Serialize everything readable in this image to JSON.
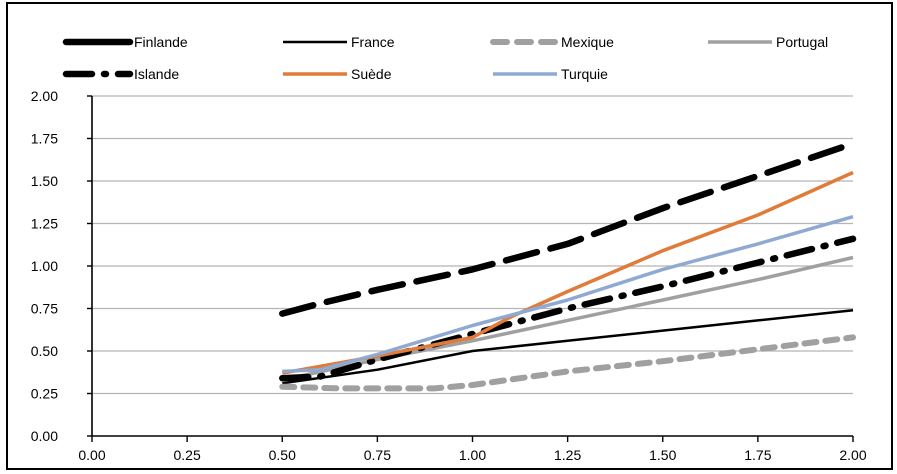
{
  "chart_data": {
    "type": "line",
    "title": "",
    "xlabel": "",
    "ylabel": "",
    "xlim": [
      0,
      2
    ],
    "ylim": [
      0,
      2
    ],
    "x_ticks": [
      "0.00",
      "0.25",
      "0.50",
      "0.75",
      "1.00",
      "1.25",
      "1.50",
      "1.75",
      "2.00"
    ],
    "y_ticks": [
      "0.00",
      "0.25",
      "0.50",
      "0.75",
      "1.00",
      "1.25",
      "1.50",
      "1.75",
      "2.00"
    ],
    "grid": "horizontal",
    "legend_position": "top",
    "series": [
      {
        "name": "Finlande",
        "color": "#000000",
        "style": "long-dash-thick",
        "x": [
          0.5,
          0.6,
          0.75,
          1.0,
          1.25,
          1.5,
          1.75,
          2.0
        ],
        "y": [
          0.72,
          0.78,
          0.86,
          0.98,
          1.13,
          1.34,
          1.53,
          1.72
        ]
      },
      {
        "name": "France",
        "color": "#000000",
        "style": "solid-thin",
        "x": [
          0.5,
          0.75,
          1.0,
          1.25,
          1.5,
          1.75,
          2.0
        ],
        "y": [
          0.31,
          0.39,
          0.5,
          0.56,
          0.62,
          0.68,
          0.74
        ]
      },
      {
        "name": "Mexique",
        "color": "#a0a0a0",
        "style": "dash-thick",
        "x": [
          0.5,
          0.65,
          0.9,
          1.0,
          1.25,
          1.5,
          1.75,
          2.0
        ],
        "y": [
          0.29,
          0.28,
          0.28,
          0.3,
          0.38,
          0.44,
          0.51,
          0.58
        ]
      },
      {
        "name": "Portugal",
        "color": "#a0a0a0",
        "style": "solid",
        "x": [
          0.5,
          0.75,
          1.0,
          1.25,
          1.5,
          1.75,
          2.0
        ],
        "y": [
          0.33,
          0.45,
          0.56,
          0.68,
          0.8,
          0.92,
          1.05
        ]
      },
      {
        "name": "Islande",
        "color": "#000000",
        "style": "dash-dot-thick",
        "x": [
          0.5,
          0.6,
          0.75,
          1.0,
          1.25,
          1.5,
          1.75,
          2.0
        ],
        "y": [
          0.34,
          0.35,
          0.45,
          0.6,
          0.75,
          0.88,
          1.02,
          1.16
        ]
      },
      {
        "name": "Suède",
        "color": "#e07b39",
        "style": "solid",
        "x": [
          0.5,
          0.75,
          1.0,
          1.1,
          1.25,
          1.5,
          1.75,
          2.0
        ],
        "y": [
          0.37,
          0.47,
          0.58,
          0.7,
          0.85,
          1.09,
          1.3,
          1.55
        ]
      },
      {
        "name": "Turquie",
        "color": "#8ea9d2",
        "style": "solid",
        "x": [
          0.5,
          0.6,
          0.75,
          1.0,
          1.25,
          1.5,
          1.75,
          2.0
        ],
        "y": [
          0.38,
          0.39,
          0.48,
          0.65,
          0.8,
          0.98,
          1.13,
          1.29
        ]
      }
    ]
  }
}
